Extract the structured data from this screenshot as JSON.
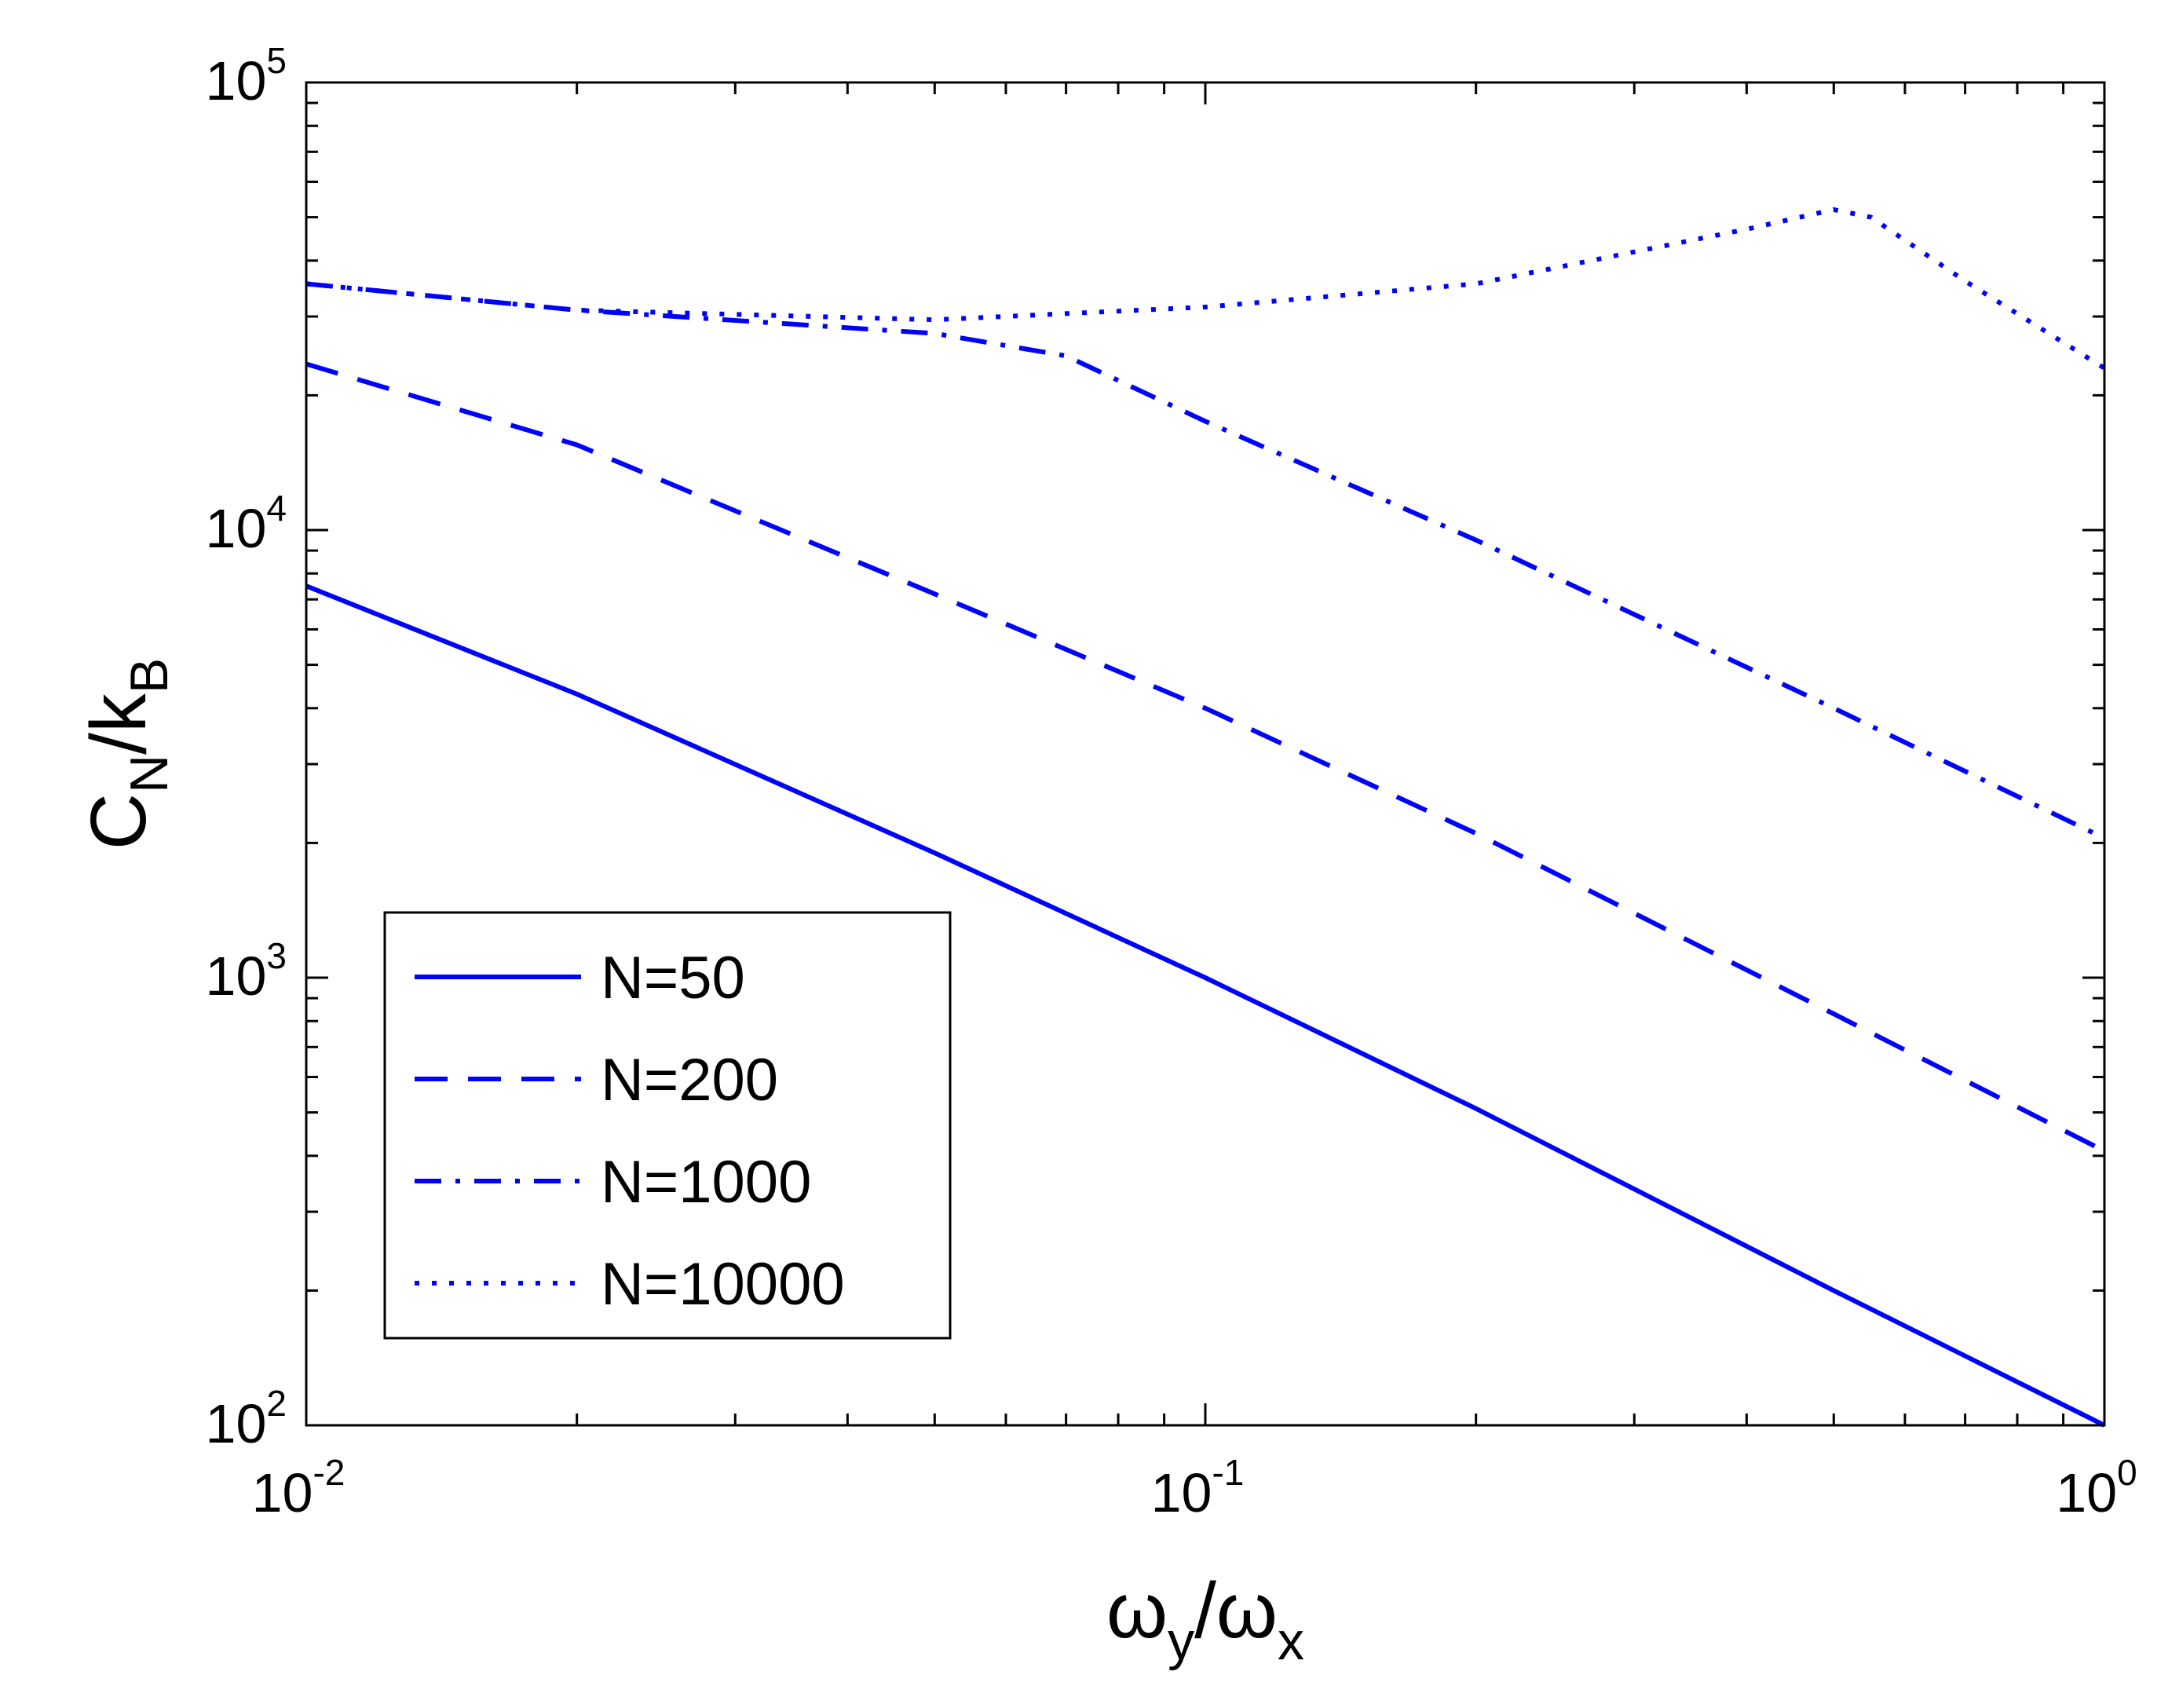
{
  "chart_data": {
    "type": "line",
    "xscale": "log",
    "yscale": "log",
    "xlim": [
      0.01,
      1
    ],
    "ylim": [
      100,
      100000
    ],
    "grid": false,
    "legend_position": "bottom-left",
    "xlabel": {
      "main": "ω",
      "sub": "y",
      "slash": "/",
      "main2": "ω",
      "sub2": "x"
    },
    "ylabel": {
      "main": "C",
      "sub": "N",
      "slash": "/",
      "main2": "k",
      "sub2": "B"
    },
    "xticks": [
      {
        "value": 0.01,
        "base": "10",
        "exp": "-2"
      },
      {
        "value": 0.1,
        "base": "10",
        "exp": "-1"
      },
      {
        "value": 1,
        "base": "10",
        "exp": "0"
      }
    ],
    "yticks": [
      {
        "value": 100,
        "base": "10",
        "exp": "2"
      },
      {
        "value": 1000,
        "base": "10",
        "exp": "3"
      },
      {
        "value": 10000,
        "base": "10",
        "exp": "4"
      },
      {
        "value": 100000,
        "base": "10",
        "exp": "5"
      }
    ],
    "series": [
      {
        "name": "N=50",
        "style": "solid",
        "color": "#0000ff",
        "x": [
          0.01,
          0.02,
          0.05,
          0.1,
          0.2,
          0.5,
          1.0
        ],
        "y": [
          7500,
          4300,
          1900,
          1000,
          510,
          200,
          100
        ]
      },
      {
        "name": "N=200",
        "style": "dashed",
        "color": "#0000ff",
        "x": [
          0.01,
          0.02,
          0.05,
          0.1,
          0.2,
          0.5,
          1.0
        ],
        "y": [
          23500,
          15500,
          7200,
          4000,
          2100,
          830,
          410
        ]
      },
      {
        "name": "N=1000",
        "style": "dashdot",
        "color": "#0000ff",
        "x": [
          0.01,
          0.02,
          0.05,
          0.07,
          0.1,
          0.2,
          0.5,
          1.0
        ],
        "y": [
          35500,
          31000,
          27500,
          24500,
          17500,
          9500,
          4000,
          2050
        ]
      },
      {
        "name": "N=10000",
        "style": "dotted",
        "color": "#0000ff",
        "x": [
          0.01,
          0.02,
          0.05,
          0.1,
          0.2,
          0.4,
          0.5,
          0.55,
          0.7,
          1.0
        ],
        "y": [
          35500,
          31000,
          29500,
          31500,
          35500,
          47000,
          52000,
          50000,
          36000,
          23000
        ]
      }
    ]
  }
}
